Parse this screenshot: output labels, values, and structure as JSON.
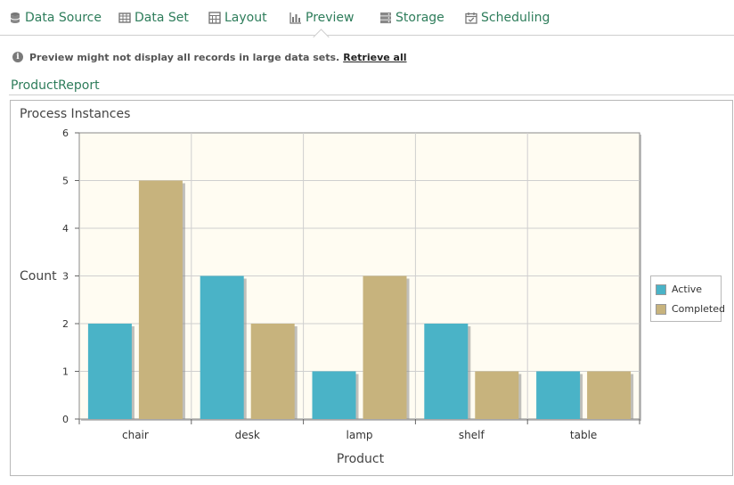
{
  "tabs": [
    {
      "label": "Data Source",
      "icon": "database-icon"
    },
    {
      "label": "Data Set",
      "icon": "table-icon"
    },
    {
      "label": "Layout",
      "icon": "layout-grid-icon"
    },
    {
      "label": "Preview",
      "icon": "bar-chart-icon",
      "active": true
    },
    {
      "label": "Storage",
      "icon": "storage-icon"
    },
    {
      "label": "Scheduling",
      "icon": "calendar-icon"
    }
  ],
  "notice": {
    "text": "Preview might not display all records in large data sets.",
    "link": "Retrieve all",
    "icon": "info-icon"
  },
  "report": {
    "title": "ProductReport"
  },
  "colors": {
    "accent": "#2e7d5b",
    "active": "#4ab3c7",
    "completed": "#c7b37d",
    "plot_bg": "#fffcf2"
  },
  "chart_data": {
    "type": "bar",
    "title": "Process Instances",
    "xlabel": "Product",
    "ylabel": "Count",
    "categories": [
      "chair",
      "desk",
      "lamp",
      "shelf",
      "table"
    ],
    "series": [
      {
        "name": "Active",
        "values": [
          2,
          3,
          1,
          2,
          1
        ],
        "color": "#4ab3c7"
      },
      {
        "name": "Completed",
        "values": [
          5,
          2,
          3,
          1,
          1
        ],
        "color": "#c7b37d"
      }
    ],
    "ylim": [
      0,
      6
    ],
    "yticks": [
      0,
      1,
      2,
      3,
      4,
      5,
      6
    ],
    "grid": true,
    "legend": "right"
  }
}
